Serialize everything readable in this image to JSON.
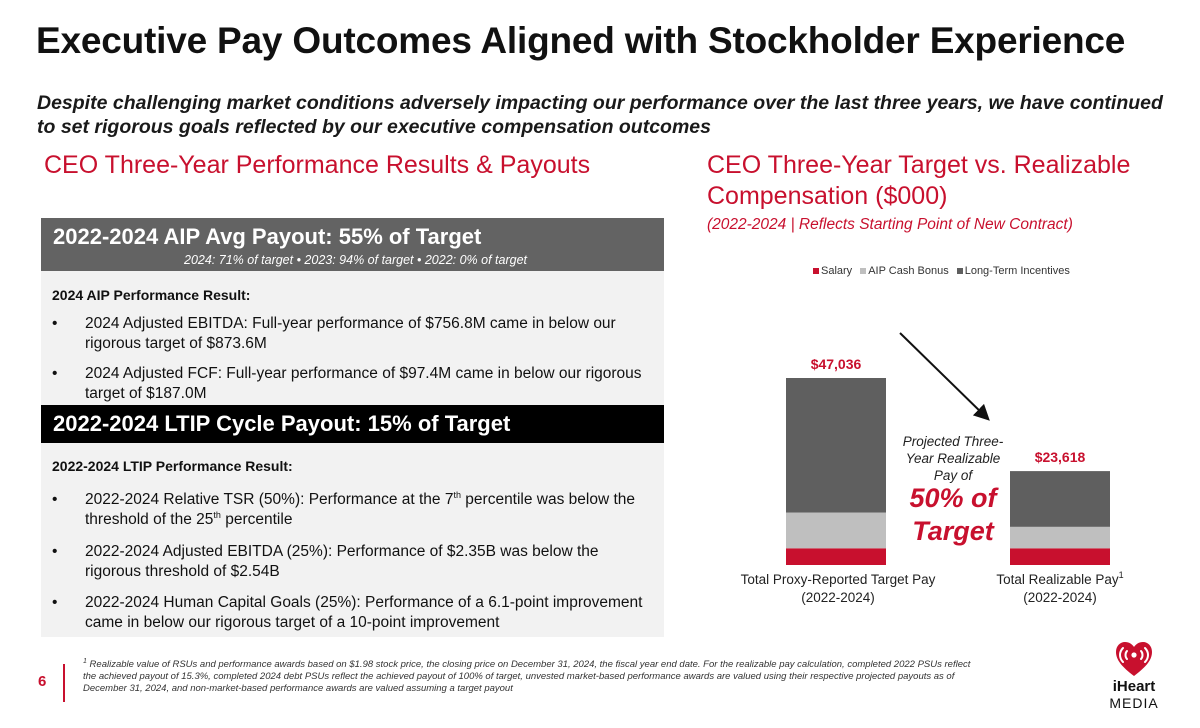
{
  "title": "Executive Pay Outcomes Aligned with Stockholder Experience",
  "subtitle": "Despite challenging market conditions adversely impacting our performance over the last three years, we have continued to set rigorous goals reflected by our executive compensation outcomes",
  "left": {
    "heading": "CEO Three-Year Performance Results & Payouts",
    "aip_band": {
      "title": "2022-2024 AIP Avg Payout: 55% of Target",
      "subtitle": "2024:  71% of target • 2023: 94% of target • 2022: 0% of target"
    },
    "aip_section": {
      "label": "2024 AIP Performance Result:",
      "bullets": [
        "2024 Adjusted EBITDA: Full-year performance of $756.8M came in below our rigorous target of $873.6M",
        "2024 Adjusted FCF: Full-year performance of $97.4M came in below our rigorous target of $187.0M"
      ]
    },
    "ltip_band": {
      "title": "2022-2024 LTIP Cycle Payout: 15% of Target"
    },
    "ltip_section": {
      "label": "2022-2024 LTIP Performance Result:",
      "bullet1_a": "2022-2024 Relative TSR (50%): Performance at the 7",
      "bullet1_sup1": "th",
      "bullet1_b": " percentile was below the threshold of the 25",
      "bullet1_sup2": "th",
      "bullet1_c": " percentile",
      "bullets": [
        "2022-2024 Adjusted EBITDA (25%): Performance of $2.35B was below the rigorous threshold of $2.54B",
        "2022-2024 Human Capital Goals (25%): Performance of a 6.1-point improvement came in below our rigorous target of a 10-point improvement"
      ]
    },
    "bullet_symbol": "•"
  },
  "right": {
    "heading": "CEO Three-Year Target vs. Realizable Compensation ($000)",
    "subheading": "(2022-2024 | Reflects Starting Point of New Contract)",
    "projection_note": "Projected Three-Year Realizable Pay of",
    "projection_value": "50% of Target"
  },
  "chart_data": {
    "type": "bar",
    "stacked": true,
    "categories": [
      "Total Proxy-Reported Target Pay",
      "Total Realizable Pay"
    ],
    "category_sublabels": [
      "(2022-2024)",
      "(2022-2024)"
    ],
    "category_superscripts": [
      "",
      "1"
    ],
    "series": [
      {
        "name": "Salary",
        "color": "#c8102e",
        "values": [
          4200,
          4200
        ]
      },
      {
        "name": "AIP Cash Bonus",
        "color": "#bfbfbf",
        "values": [
          9000,
          5400
        ]
      },
      {
        "name": "Long-Term Incentives",
        "color": "#5f5f5f",
        "values": [
          33836,
          14018
        ]
      }
    ],
    "totals": [
      47036,
      23618
    ],
    "total_labels": [
      "$47,036",
      "$23,618"
    ],
    "total_label_color": "#c8102e",
    "ylim": [
      0,
      50000
    ],
    "grid": false,
    "legend_position": "top",
    "annotation": "arrow from first bar to second bar"
  },
  "footer": {
    "page_number": "6",
    "footnote_sup": "1",
    "footnote": "Realizable value of RSUs and performance awards based on $1.98 stock price, the closing price on December 31, 2024, the fiscal year end date. For the realizable pay calculation, completed 2022 PSUs reflect the achieved payout of 15.3%, completed 2024 debt PSUs reflect the achieved payout of 100% of target, unvested market-based performance awards are valued using their respective projected payouts as of December 31, 2024, and non-market-based performance awards are valued assuming a target payout"
  },
  "logo": {
    "line1": "iHeart",
    "line2": "MEDIA",
    "icon": "iheart-logo-icon",
    "color": "#c8102e"
  }
}
